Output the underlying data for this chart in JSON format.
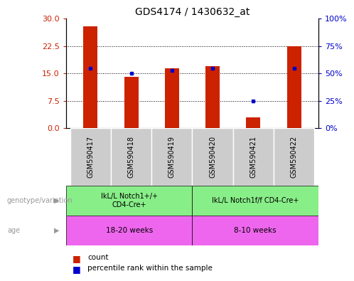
{
  "title": "GDS4174 / 1430632_at",
  "samples": [
    "GSM590417",
    "GSM590418",
    "GSM590419",
    "GSM590420",
    "GSM590421",
    "GSM590422"
  ],
  "counts": [
    28.0,
    14.0,
    16.5,
    17.0,
    3.0,
    22.5
  ],
  "percentiles": [
    55,
    50,
    53,
    55,
    25,
    55
  ],
  "ylim_left": [
    0,
    30
  ],
  "ylim_right": [
    0,
    100
  ],
  "yticks_left": [
    0,
    7.5,
    15,
    22.5,
    30
  ],
  "yticks_right": [
    0,
    25,
    50,
    75,
    100
  ],
  "bar_color": "#cc2200",
  "dot_color": "#0000cc",
  "bar_width": 0.35,
  "group1_genotype": "IkL/L Notch1+/+\nCD4-Cre+",
  "group2_genotype": "IkL/L Notch1f/f CD4-Cre+",
  "group1_age": "18-20 weeks",
  "group2_age": "8-10 weeks",
  "genotype_color": "#88ee88",
  "age_color": "#ee66ee",
  "label_count": "count",
  "label_percentile": "percentile rank within the sample",
  "sample_bg_color": "#cccccc",
  "left_label_color": "#999999"
}
